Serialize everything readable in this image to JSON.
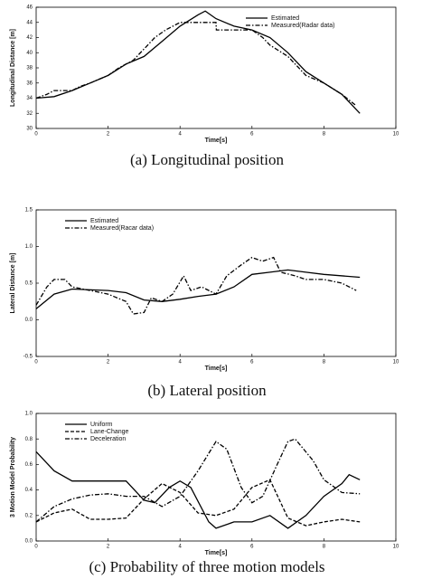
{
  "chart_data": [
    {
      "type": "line",
      "caption": "(a) Longitudinal position",
      "xlabel": "Time[s]",
      "ylabel": "Longitudinal Distance [m]",
      "xlim": [
        0,
        10
      ],
      "xticks": [
        0,
        2,
        4,
        6,
        8,
        10
      ],
      "ylim": [
        30,
        46
      ],
      "yticks": [
        30,
        32,
        34,
        36,
        38,
        40,
        42,
        44,
        46
      ],
      "legend": "upper right",
      "series": [
        {
          "name": "Estimated",
          "color": "#000000",
          "style": "solid",
          "x": [
            0,
            0.5,
            1,
            1.5,
            2,
            2.5,
            3,
            3.5,
            4,
            4.5,
            4.7,
            5,
            5.5,
            6,
            6.5,
            7,
            7.5,
            8,
            8.5,
            9
          ],
          "values": [
            34,
            34.2,
            35,
            36,
            37,
            38.5,
            39.5,
            41.5,
            43.5,
            45,
            45.5,
            44.5,
            43.5,
            43,
            42,
            40,
            37.5,
            36,
            34.5,
            32
          ]
        },
        {
          "name": "Measured(Radar data)",
          "color": "#000000",
          "style": "dashdot",
          "x": [
            0,
            0.3,
            0.5,
            1,
            1.2,
            1.5,
            2,
            2.3,
            2.7,
            3,
            3.3,
            3.6,
            4,
            4.5,
            5,
            5.01,
            5.5,
            6,
            6.3,
            6.5,
            7,
            7.5,
            8,
            8.5,
            8.9
          ],
          "values": [
            34,
            34.5,
            35,
            35,
            35.5,
            36,
            37,
            38,
            39,
            40.5,
            42,
            43,
            44,
            44,
            44,
            43,
            43,
            43,
            42,
            41,
            39.5,
            37,
            36,
            34.5,
            33
          ]
        }
      ]
    },
    {
      "type": "line",
      "caption": "(b) Lateral position",
      "xlabel": "Time[s]",
      "ylabel": "Lateral Distance [m]",
      "xlim": [
        0,
        10
      ],
      "xticks": [
        0,
        2,
        4,
        6,
        8,
        10
      ],
      "ylim": [
        -0.5,
        1.5
      ],
      "yticks": [
        -0.5,
        {
          "value": 0,
          "label": "0.0"
        },
        0.5,
        {
          "value": 1,
          "label": "1.0"
        },
        1.5
      ],
      "legend": "upper left",
      "series": [
        {
          "name": "Estimated",
          "color": "#000000",
          "style": "solid",
          "x": [
            0,
            0.5,
            1,
            2,
            2.5,
            3,
            3.5,
            4,
            4.5,
            5,
            5.5,
            6,
            6.5,
            7,
            7.5,
            8,
            9
          ],
          "values": [
            0.15,
            0.35,
            0.42,
            0.4,
            0.37,
            0.27,
            0.25,
            0.28,
            0.32,
            0.35,
            0.45,
            0.62,
            0.65,
            0.68,
            0.65,
            0.62,
            0.58
          ]
        },
        {
          "name": "Measured(Racar data)",
          "color": "#000000",
          "style": "dashdot",
          "x": [
            0,
            0.3,
            0.5,
            0.8,
            1,
            1.5,
            2,
            2.5,
            2.7,
            3,
            3.2,
            3.5,
            3.8,
            4.1,
            4.3,
            4.6,
            5,
            5.3,
            5.7,
            6,
            6.3,
            6.6,
            6.8,
            7.2,
            7.5,
            8,
            8.5,
            8.9
          ],
          "values": [
            0.2,
            0.45,
            0.55,
            0.55,
            0.45,
            0.4,
            0.35,
            0.25,
            0.08,
            0.1,
            0.3,
            0.25,
            0.35,
            0.6,
            0.4,
            0.45,
            0.35,
            0.6,
            0.75,
            0.85,
            0.8,
            0.85,
            0.65,
            0.6,
            0.55,
            0.55,
            0.5,
            0.4
          ]
        }
      ]
    },
    {
      "type": "line",
      "caption": "(c) Probability of three motion models",
      "xlabel": "Time[s]",
      "ylabel": "3 Motion Model Probability",
      "xlim": [
        0,
        10
      ],
      "xticks": [
        0,
        2,
        4,
        6,
        8,
        10
      ],
      "ylim": [
        0,
        1
      ],
      "yticks": [
        {
          "value": 0,
          "label": "0.0"
        },
        0.2,
        0.4,
        0.6,
        0.8,
        {
          "value": 1,
          "label": "1.0"
        }
      ],
      "legend": "upper left",
      "series": [
        {
          "name": "Uniform",
          "color": "#000000",
          "style": "solid",
          "x": [
            0,
            0.5,
            1,
            2,
            2.5,
            3,
            3.3,
            3.7,
            4,
            4.3,
            4.8,
            5,
            5.5,
            6,
            6.5,
            7,
            7.5,
            8,
            8.5,
            8.7,
            9
          ],
          "values": [
            0.7,
            0.55,
            0.47,
            0.47,
            0.47,
            0.32,
            0.3,
            0.42,
            0.47,
            0.42,
            0.15,
            0.1,
            0.15,
            0.15,
            0.2,
            0.1,
            0.2,
            0.35,
            0.45,
            0.52,
            0.48
          ]
        },
        {
          "name": "Lane-Change",
          "color": "#000000",
          "style": "dashed",
          "x": [
            0,
            0.5,
            1,
            1.5,
            2,
            2.5,
            3,
            3.5,
            4,
            4.5,
            5,
            5.5,
            6,
            6.5,
            7,
            7.5,
            8,
            8.5,
            9
          ],
          "values": [
            0.15,
            0.22,
            0.25,
            0.17,
            0.17,
            0.18,
            0.33,
            0.45,
            0.38,
            0.22,
            0.2,
            0.25,
            0.42,
            0.48,
            0.18,
            0.12,
            0.15,
            0.17,
            0.15
          ]
        },
        {
          "name": "Deceleration",
          "color": "#000000",
          "style": "dashdot",
          "x": [
            0,
            0.5,
            1,
            1.5,
            2,
            2.5,
            3,
            3.5,
            4,
            4.5,
            5,
            5.3,
            5.7,
            6,
            6.3,
            6.7,
            7,
            7.2,
            7.7,
            8,
            8.5,
            9
          ],
          "values": [
            0.15,
            0.27,
            0.33,
            0.36,
            0.37,
            0.35,
            0.35,
            0.27,
            0.35,
            0.55,
            0.78,
            0.72,
            0.42,
            0.3,
            0.35,
            0.6,
            0.78,
            0.8,
            0.63,
            0.48,
            0.38,
            0.37
          ]
        }
      ]
    }
  ]
}
